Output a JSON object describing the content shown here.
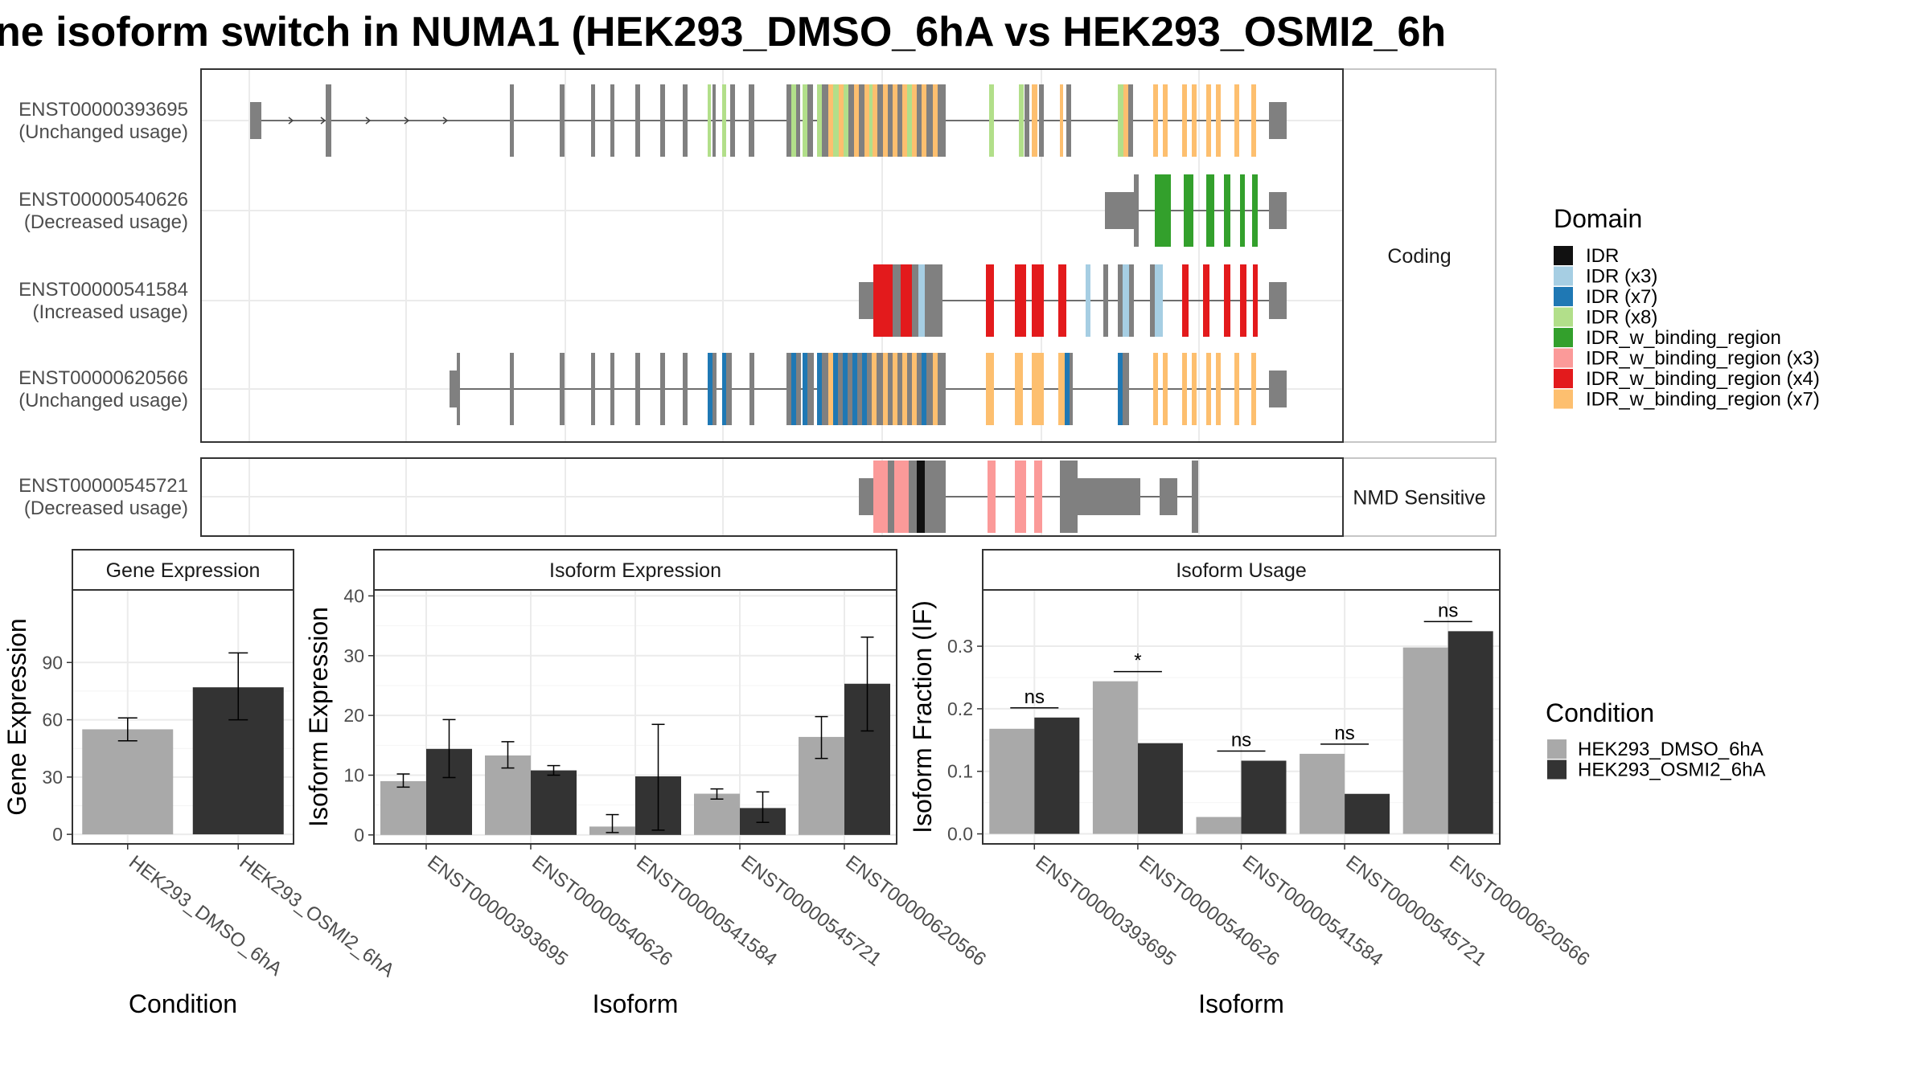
{
  "title": "ne isoform switch in NUMA1 (HEK293_DMSO_6hA vs HEK293_OSMI2_6h",
  "transcripts": {
    "facets": [
      {
        "label": "Coding",
        "isoforms": [
          {
            "id": "ENST00000393695",
            "status": "(Unchanged usage)"
          },
          {
            "id": "ENST00000540626",
            "status": "(Decreased usage)"
          },
          {
            "id": "ENST00000541584",
            "status": "(Increased usage)"
          },
          {
            "id": "ENST00000620566",
            "status": "(Unchanged usage)"
          }
        ]
      },
      {
        "label": "NMD Sensitive",
        "isoforms": [
          {
            "id": "ENST00000545721",
            "status": "(Decreased usage)"
          }
        ]
      }
    ]
  },
  "domain_legend": {
    "title": "Domain",
    "items": [
      {
        "label": "IDR",
        "color": "#111111"
      },
      {
        "label": "IDR (x3)",
        "color": "#a6cee3"
      },
      {
        "label": "IDR (x7)",
        "color": "#1f78b4"
      },
      {
        "label": "IDR (x8)",
        "color": "#b2df8a"
      },
      {
        "label": "IDR_w_binding_region",
        "color": "#33a02c"
      },
      {
        "label": "IDR_w_binding_region (x3)",
        "color": "#fb9a99"
      },
      {
        "label": "IDR_w_binding_region (x4)",
        "color": "#e31a1c"
      },
      {
        "label": "IDR_w_binding_region (x7)",
        "color": "#fdbf6f"
      }
    ]
  },
  "condition_legend": {
    "title": "Condition",
    "items": [
      {
        "label": "HEK293_DMSO_6hA",
        "color": "#a9a9a9"
      },
      {
        "label": "HEK293_OSMI2_6hA",
        "color": "#333333"
      }
    ]
  },
  "chart_data": [
    {
      "type": "bar",
      "title": "Gene Expression",
      "xlabel": "Condition",
      "ylabel": "Gene Expression",
      "categories": [
        "HEK293_DMSO_6hA",
        "HEK293_OSMI2_6hA"
      ],
      "values": [
        55,
        77
      ],
      "errors": [
        [
          49,
          61
        ],
        [
          60,
          95
        ]
      ],
      "ylim": [
        -5,
        128
      ],
      "yticks": [
        0,
        30,
        60,
        90
      ],
      "grid": true
    },
    {
      "type": "bar",
      "title": "Isoform Expression",
      "xlabel": "Isoform",
      "ylabel": "Isoform Expression",
      "categories": [
        "ENST00000393695",
        "ENST00000540626",
        "ENST00000541584",
        "ENST00000545721",
        "ENST00000620566"
      ],
      "series": [
        {
          "name": "HEK293_DMSO_6hA",
          "values": [
            9.0,
            13.3,
            1.4,
            6.9,
            16.4
          ],
          "errors": [
            [
              8.0,
              10.2
            ],
            [
              11.2,
              15.6
            ],
            [
              0.4,
              3.4
            ],
            [
              6.0,
              7.7
            ],
            [
              12.8,
              19.8
            ]
          ]
        },
        {
          "name": "HEK293_OSMI2_6hA",
          "values": [
            14.4,
            10.8,
            9.8,
            4.5,
            25.3
          ],
          "errors": [
            [
              9.6,
              19.3
            ],
            [
              10.0,
              11.6
            ],
            [
              0.8,
              18.5
            ],
            [
              2.1,
              7.2
            ],
            [
              17.4,
              33.1
            ]
          ]
        }
      ],
      "ylim": [
        -1.5,
        41
      ],
      "yticks": [
        0,
        10,
        20,
        30,
        40
      ],
      "grid": true
    },
    {
      "type": "bar",
      "title": "Isoform Usage",
      "xlabel": "Isoform",
      "ylabel": "Isoform Fraction (IF)",
      "categories": [
        "ENST00000393695",
        "ENST00000540626",
        "ENST00000541584",
        "ENST00000545721",
        "ENST00000620566"
      ],
      "series": [
        {
          "name": "HEK293_DMSO_6hA",
          "values": [
            0.168,
            0.244,
            0.027,
            0.128,
            0.298
          ]
        },
        {
          "name": "HEK293_OSMI2_6hA",
          "values": [
            0.186,
            0.145,
            0.117,
            0.064,
            0.324
          ]
        }
      ],
      "significance": [
        "ns",
        "*",
        "ns",
        "ns",
        "ns"
      ],
      "ylim": [
        -0.016,
        0.39
      ],
      "yticks": [
        0.0,
        0.1,
        0.2,
        0.3
      ],
      "ytick_labels": [
        "0.0",
        "0.1",
        "0.2",
        "0.3"
      ],
      "grid": true
    }
  ]
}
